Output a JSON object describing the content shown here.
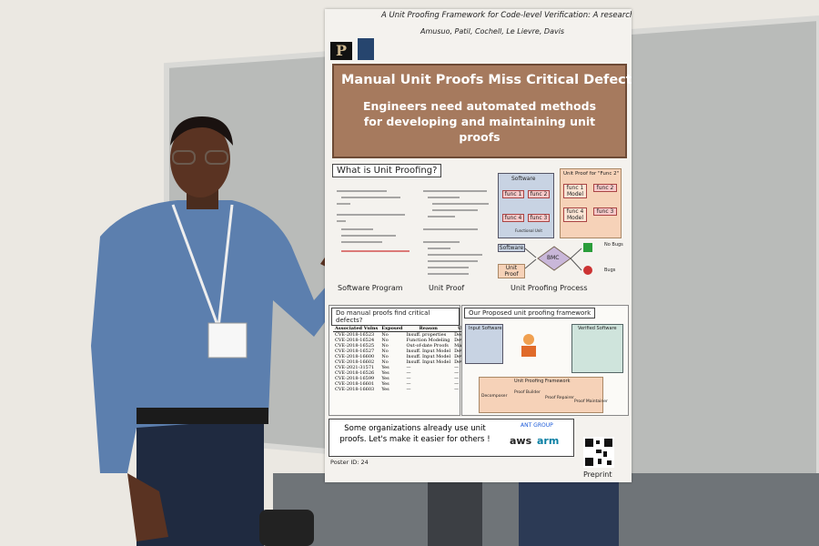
{
  "poster": {
    "title": "A Unit Proofing Framework for Code-level Verification: A research Agenda",
    "authors": "Amusuo, Patil, Cochell, Le Lievre, Davis",
    "headline": "Manual Unit Proofs Miss Critical Defects",
    "subheadline": "Engineers need automated methods for developing and maintaining unit proofs",
    "section1": {
      "heading": "What is Unit Proofing?",
      "captions": [
        "Software Program",
        "Unit Proof",
        "Unit Proofing Process"
      ],
      "software": "Software",
      "funcs": [
        "func 1",
        "func 2",
        "func 3",
        "func 4"
      ],
      "functional_unit": "Functional Unit",
      "unit_proof_for": "Unit Proof for \"Func 2\"",
      "model_funcs": [
        "func 1 Model",
        "func 2",
        "func 3",
        "func 4 Model"
      ],
      "inputs": [
        "Software",
        "Unit Proof"
      ],
      "checker": "BMC",
      "outcomes": [
        "No Bugs",
        "Bugs"
      ]
    },
    "section2": {
      "heading": "Do manual proofs find critical defects?",
      "table": {
        "header": [
          "Associated Vulns",
          "Exposed",
          "Reason",
          "UP Stage"
        ],
        "rows": [
          [
            "CVE-2018-16523",
            "No",
            "Insuff. properties",
            "Design"
          ],
          [
            "CVE-2018-16524",
            "No",
            "Function Modeling",
            "Development"
          ],
          [
            "CVE-2018-16525",
            "No",
            "Out-of-date Proofs",
            "Maintenance"
          ],
          [
            "CVE-2018-16527",
            "No",
            "Insuff. Input Model",
            "Development"
          ],
          [
            "CVE-2018-16600",
            "No",
            "Insuff. Input Model",
            "Development"
          ],
          [
            "CVE-2018-16602",
            "No",
            "Insuff. Input Model",
            "Development"
          ],
          [
            "CVE-2021-31571",
            "Yes",
            "—",
            "—"
          ],
          [
            "CVE-2018-16526",
            "Yes",
            "—",
            "—"
          ],
          [
            "CVE-2018-16599",
            "Yes",
            "—",
            "—"
          ],
          [
            "CVE-2018-16601",
            "Yes",
            "—",
            "—"
          ],
          [
            "CVE-2018-16603",
            "Yes",
            "—",
            "—"
          ]
        ]
      }
    },
    "section3": {
      "heading": "Our Proposed unit proofing framework",
      "input": "Input Software",
      "output": "Verified Software",
      "framework": "Unit Proofing Framework",
      "components": [
        "Decomposer",
        "Proof Builder",
        "Proof Repairer",
        "Proof Maintainer"
      ]
    },
    "banner": "Some organizations already use unit proofs. Let's make it easier for others !",
    "poster_id": "Poster ID: 24",
    "sponsors": [
      "ANT GROUP",
      "aws",
      "arm"
    ],
    "preprint": "Preprint"
  }
}
